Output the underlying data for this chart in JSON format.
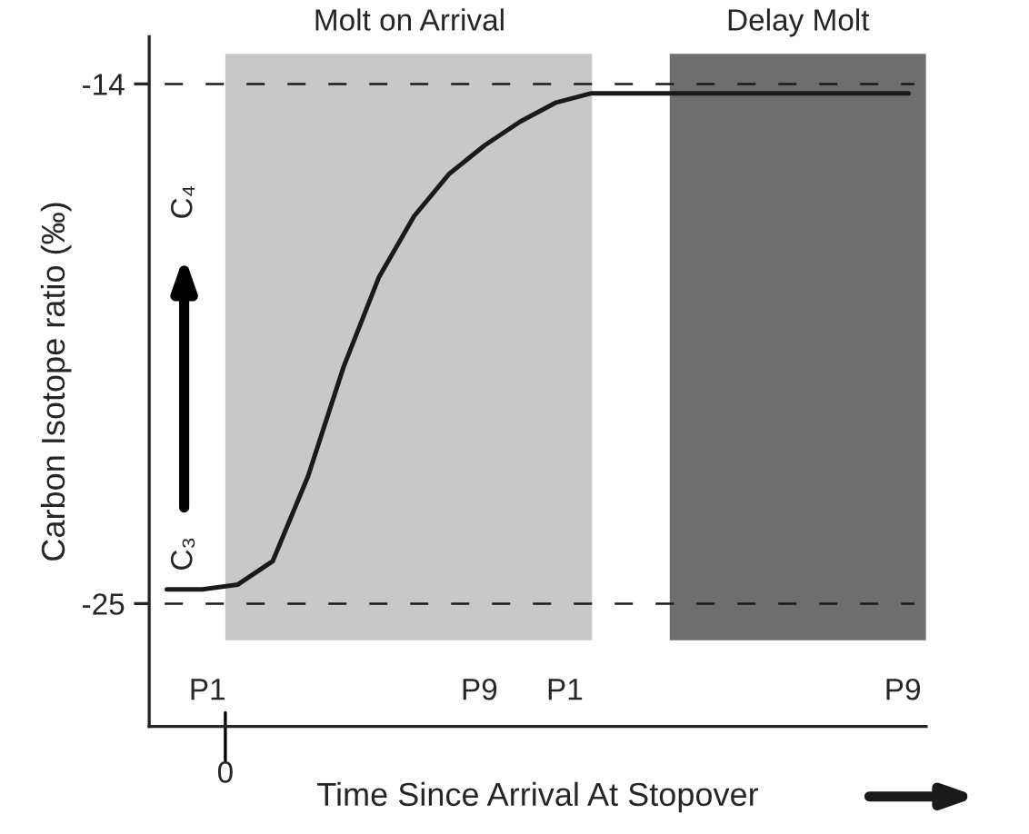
{
  "chart_data": {
    "type": "line",
    "xlabel": "Time Since Arrival At Stopover",
    "ylabel": "Carbon Isotope ratio (‰)",
    "categories": [
      null,
      null,
      null,
      null,
      null,
      null,
      null,
      null,
      null,
      null,
      null,
      null,
      null,
      null,
      null,
      null,
      null,
      null,
      null,
      null,
      null,
      null
    ],
    "series": [
      {
        "color": "#1a1a1a",
        "values": [
          -24.7,
          -24.7,
          -24.6,
          -24.1,
          -22.3,
          -20.0,
          -18.1,
          -16.8,
          -15.9,
          -15.3,
          -14.8,
          -14.4,
          -14.2,
          -14.2,
          -14.2,
          -14.2,
          -14.2,
          -14.2,
          -14.2,
          -14.2,
          -14.2,
          -14.2
        ]
      }
    ],
    "ylim": [
      -27.6,
      -13
    ],
    "yticks": [
      {
        "value": -25,
        "label": "-25"
      },
      {
        "value": -14,
        "label": "-14"
      }
    ],
    "marker": "none",
    "line_style": "solid",
    "ref_lines": [
      {
        "axis": "y",
        "value": -14,
        "color": "#1a1a1a",
        "line_style": "dashed"
      },
      {
        "axis": "y",
        "value": -25,
        "color": "#1a1a1a",
        "line_style": "dashed"
      }
    ],
    "annotations": [
      "Molt on Arrival",
      "Delay Molt",
      "C₃",
      "C₄",
      "P1",
      "P9",
      "P1",
      "P9",
      "0"
    ]
  }
}
